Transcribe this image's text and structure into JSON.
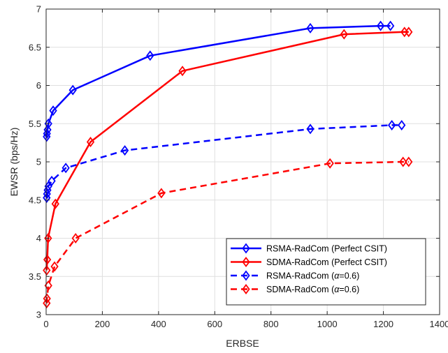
{
  "chart_data": {
    "type": "line",
    "xlabel": "ERBSE",
    "ylabel": "EWSR (bps/Hz)",
    "xlim": [
      0,
      1400
    ],
    "ylim": [
      3,
      7
    ],
    "xticks": [
      0,
      200,
      400,
      600,
      800,
      1000,
      1200,
      1400
    ],
    "yticks": [
      3,
      3.5,
      4,
      4.5,
      5,
      5.5,
      6,
      6.5,
      7
    ],
    "xtick_labels": [
      "0",
      "200",
      "400",
      "600",
      "800",
      "1000",
      "1200",
      "1400"
    ],
    "ytick_labels": [
      "3",
      "3.5",
      "4",
      "4.5",
      "5",
      "5.5",
      "6",
      "6.5",
      "7"
    ],
    "grid": true,
    "legend_position": "bottom-right",
    "series": [
      {
        "name": "RSMA-RadCom (Perfect CSIT)",
        "color": "#0000ff",
        "dash": "solid",
        "marker": "diamond",
        "x": [
          2,
          3,
          5,
          8,
          25,
          95,
          370,
          940,
          1190,
          1225
        ],
        "y": [
          5.33,
          5.37,
          5.42,
          5.5,
          5.67,
          5.94,
          6.39,
          6.75,
          6.78,
          6.78
        ]
      },
      {
        "name": "SDMA-RadCom (Perfect CSIT)",
        "color": "#ff0000",
        "dash": "solid",
        "marker": "diamond",
        "x": [
          2,
          4,
          7,
          33,
          158,
          485,
          1060,
          1275,
          1290
        ],
        "y": [
          3.58,
          3.72,
          4.0,
          4.45,
          5.26,
          6.19,
          6.67,
          6.7,
          6.7
        ]
      },
      {
        "name": "RSMA-RadCom (α=0.6)",
        "label_prefix": "RSMA-RadCom (",
        "label_symbol": "α",
        "label_suffix": "=0.6)",
        "color": "#0000ff",
        "dash": "dashed",
        "marker": "diamond",
        "x": [
          2,
          3,
          5,
          8,
          20,
          70,
          280,
          940,
          1230,
          1265
        ],
        "y": [
          4.53,
          4.58,
          4.63,
          4.68,
          4.75,
          4.92,
          5.15,
          5.43,
          5.48,
          5.48
        ]
      },
      {
        "name": "SDMA-RadCom (α=0.6)",
        "label_prefix": "SDMA-RadCom (",
        "label_symbol": "α",
        "label_suffix": "=0.6)",
        "color": "#ff0000",
        "dash": "dashed",
        "marker": "diamond",
        "x": [
          2,
          3,
          8,
          30,
          105,
          410,
          1010,
          1270,
          1290
        ],
        "y": [
          3.15,
          3.21,
          3.38,
          3.63,
          4.0,
          4.59,
          4.98,
          5.0,
          5.0
        ]
      }
    ]
  }
}
